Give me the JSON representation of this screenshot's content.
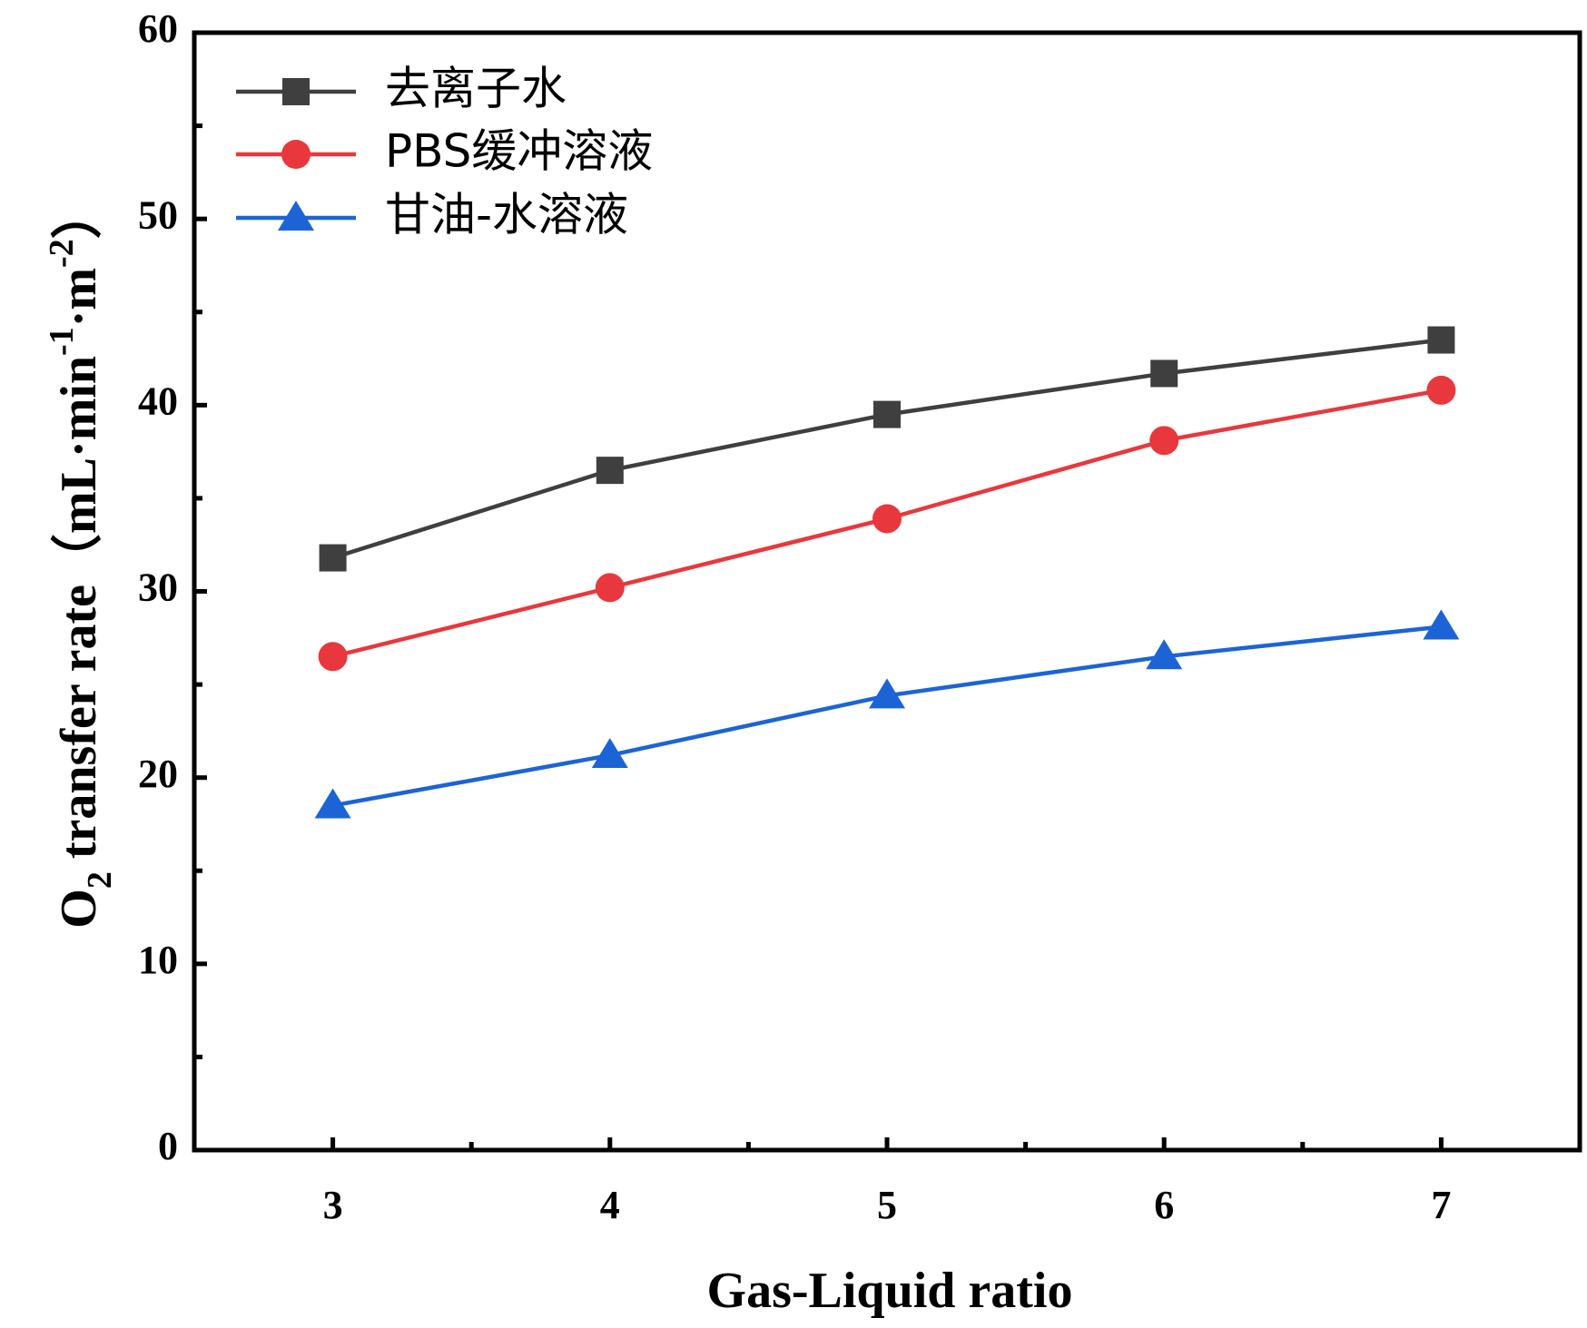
{
  "chart_data": {
    "type": "line",
    "xlabel": "Gas-Liquid ratio",
    "ylabel": {
      "main": "O",
      "sub": "2",
      "rest": " transfer rate（mL·min",
      "sup1": "-1",
      "mid": "·m",
      "sup2": "-2",
      "end": "）"
    },
    "xlim": [
      2.5,
      7.5
    ],
    "ylim": [
      0,
      60
    ],
    "x_ticks": [
      3,
      4,
      5,
      6,
      7
    ],
    "x_minor_ticks": [
      3.5,
      4.5,
      5.5,
      6.5
    ],
    "y_ticks": [
      0,
      10,
      20,
      30,
      40,
      50,
      60
    ],
    "y_minor_ticks": [
      5,
      15,
      25,
      35,
      45,
      55
    ],
    "x": [
      3,
      4,
      5,
      6,
      7
    ],
    "legend_position": "top-left",
    "grid": false,
    "series": [
      {
        "name": "去离子水",
        "color": "#3f3f3f",
        "marker": "square",
        "values": [
          31.8,
          36.5,
          39.5,
          41.7,
          43.5
        ]
      },
      {
        "name": "PBS缓冲溶液",
        "color": "#e8383d",
        "marker": "circle",
        "values": [
          26.5,
          30.2,
          33.9,
          38.1,
          40.8
        ]
      },
      {
        "name": "甘油-水溶液",
        "color": "#1c64d6",
        "marker": "triangle",
        "values": [
          18.5,
          21.2,
          24.4,
          26.5,
          28.1
        ]
      }
    ]
  }
}
